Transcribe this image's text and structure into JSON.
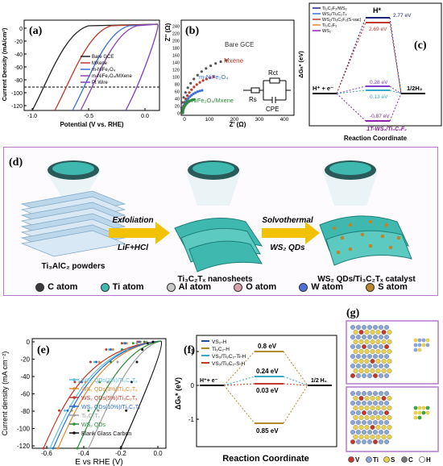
{
  "panel_a": {
    "label": "(a)",
    "ylabel": "Current Density (mA/cm²)",
    "xlabel": "Potential (V vs. RHE)",
    "yticks": [
      "0",
      "-20",
      "-40",
      "-60",
      "-80",
      "-100",
      "-120"
    ],
    "xticks": [
      "-1.0",
      "-0.5",
      "0.0"
    ],
    "legend": [
      "Bare GCE",
      "MXene",
      "m-NiFe₂O₄",
      "m-NiFe₂O₄/MXene",
      "Pt Wire"
    ],
    "colors": [
      "#222222",
      "#c0392b",
      "#3b6fd6",
      "#8e44ad",
      "#7d3cc8"
    ]
  },
  "panel_b": {
    "label": "(b)",
    "ylabel": "Z'' (Ω)",
    "xlabel": "Z' (Ω)",
    "yticks": [
      "0",
      "20",
      "40",
      "60",
      "80",
      "100",
      "120",
      "140",
      "160",
      "180",
      "200",
      "220",
      "240"
    ],
    "xticks": [
      "0",
      "100",
      "200",
      "300",
      "400"
    ],
    "series_labels": [
      "Bare GCE",
      "Mxene",
      "m-NiFe₂O₄",
      "m-NiFe₂O₄/Mxene"
    ],
    "circuit": {
      "rct": "Rct",
      "rs": "Rs",
      "cpe": "CPE"
    }
  },
  "panel_c": {
    "label": "(c)",
    "legend": [
      "Ti₃C₂F₂/WS₂",
      "WS₂/Ti₃C₂Tₓ",
      "WS₂/Ti₃C₂F₂(S-vac)",
      "Ti₃C₂F₂",
      "WS₂"
    ],
    "values": [
      "2.77 eV",
      "2.69 eV",
      "0.28 eV",
      "0.13 eV",
      "-0.87 eV"
    ],
    "h_star": "H*",
    "left_label": "H⁺ + e⁻",
    "right_label": "1/2H₂",
    "ylabel": "ΔGₕ* (eV)",
    "xlabel": "Reaction Coordinate",
    "annotation": "1T-WS₂/Ti₃C₂F₂"
  },
  "panel_d": {
    "label": "(d)",
    "step1_top": "Exfoliation",
    "step1_bottom": "LiF+HCl",
    "step2_top": "Solvothermal",
    "step2_bottom": "WS₂ QDs",
    "stage_labels": [
      "Ti₃AlC₂ powders",
      "Ti₃C₂Tₓ nanosheets",
      "WS₂ QDs/Ti₃C₂Tₓ catalyst"
    ],
    "atoms": [
      {
        "name": "C atom",
        "color": "#3a3a3a"
      },
      {
        "name": "Ti atom",
        "color": "#3fb8af"
      },
      {
        "name": "Al atom",
        "color": "#c8c8c8"
      },
      {
        "name": "O atom",
        "color": "#d8a0a8"
      },
      {
        "name": "W atom",
        "color": "#4e6fd8"
      },
      {
        "name": "S atom",
        "color": "#b8862b"
      }
    ]
  },
  "panel_e": {
    "label": "(e)",
    "ylabel": "Current density (mA cm⁻²)",
    "xlabel": "E vs RHE (V)",
    "yticks": [
      "0",
      "-20",
      "-40",
      "-60",
      "-80",
      "-100",
      "-120"
    ],
    "xticks": [
      "-0.6",
      "-0.4",
      "-0.2",
      "0.0"
    ],
    "legend": [
      "WS₂ QDs(1%)/Ti₃C₂Tₓ",
      "WS₂ QDs(3%)/Ti₃C₂Tₓ",
      "WS₂ QDs(5%)/Ti₃C₂Tₓ",
      "WS₂ QDs(10%)/Ti₃C₂Tₓ",
      "Ti₃C₂Tₓ",
      "WS₂ QDs",
      "Blank Glass Carbon"
    ],
    "colors": [
      "#5bc0de",
      "#e08a2b",
      "#c0392b",
      "#2a6fd6",
      "#a0a0a0",
      "#2e8b3a",
      "#111111"
    ]
  },
  "panel_f": {
    "label": "(f)",
    "legend": [
      "VS₂-H",
      "Ti₃C₂-H",
      "VS₂/Ti₃C₂-Ti-H",
      "VS₂/Ti₃C₂-S-H"
    ],
    "colors": [
      "#1f4e9c",
      "#b38b2c",
      "#3aa8c8",
      "#c0392b"
    ],
    "values": [
      "0.8 eV",
      "0.24 eV",
      "0.03 eV",
      "0.85 eV"
    ],
    "left_label": "H⁺+ e⁻",
    "right_label": "1/2 H₂",
    "ylabel": "ΔGₕ* (eV)",
    "yticks": [
      "1",
      "0",
      "-1"
    ],
    "xlabel": "Reaction Coordinate"
  },
  "panel_g": {
    "label": "(g)",
    "legend": [
      {
        "sym": "V",
        "color": "#c0392b"
      },
      {
        "sym": "Ti",
        "color": "#8aa6d8"
      },
      {
        "sym": "S",
        "color": "#e8d14a"
      },
      {
        "sym": "C",
        "color": "#777777"
      },
      {
        "sym": "H",
        "color": "#ffffff"
      }
    ]
  }
}
